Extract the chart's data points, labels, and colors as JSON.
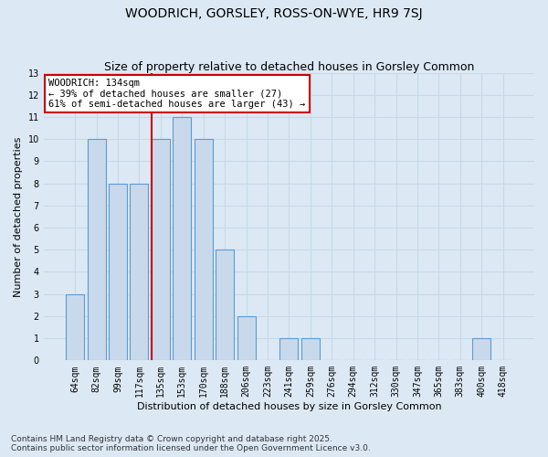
{
  "title": "WOODRICH, GORSLEY, ROSS-ON-WYE, HR9 7SJ",
  "subtitle": "Size of property relative to detached houses in Gorsley Common",
  "xlabel": "Distribution of detached houses by size in Gorsley Common",
  "ylabel": "Number of detached properties",
  "categories": [
    "64sqm",
    "82sqm",
    "99sqm",
    "117sqm",
    "135sqm",
    "153sqm",
    "170sqm",
    "188sqm",
    "206sqm",
    "223sqm",
    "241sqm",
    "259sqm",
    "276sqm",
    "294sqm",
    "312sqm",
    "330sqm",
    "347sqm",
    "365sqm",
    "383sqm",
    "400sqm",
    "418sqm"
  ],
  "values": [
    3,
    10,
    8,
    8,
    10,
    11,
    10,
    5,
    2,
    0,
    1,
    1,
    0,
    0,
    0,
    0,
    0,
    0,
    0,
    1,
    0
  ],
  "bar_color": "#c9d9ec",
  "bar_edge_color": "#5b9bd5",
  "grid_color": "#c8d8e8",
  "background_color": "#dce9f5",
  "marker_line_color": "#cc0000",
  "marker_line_index": 4,
  "annotation_title": "WOODRICH: 134sqm",
  "annotation_line1": "← 39% of detached houses are smaller (27)",
  "annotation_line2": "61% of semi-detached houses are larger (43) →",
  "annotation_box_color": "#ffffff",
  "annotation_border_color": "#cc0000",
  "ylim": [
    0,
    13
  ],
  "yticks": [
    0,
    1,
    2,
    3,
    4,
    5,
    6,
    7,
    8,
    9,
    10,
    11,
    12,
    13
  ],
  "footnote": "Contains HM Land Registry data © Crown copyright and database right 2025.\nContains public sector information licensed under the Open Government Licence v3.0.",
  "title_fontsize": 10,
  "subtitle_fontsize": 9,
  "xlabel_fontsize": 8,
  "ylabel_fontsize": 8,
  "tick_fontsize": 7,
  "annotation_fontsize": 7.5,
  "footnote_fontsize": 6.5
}
